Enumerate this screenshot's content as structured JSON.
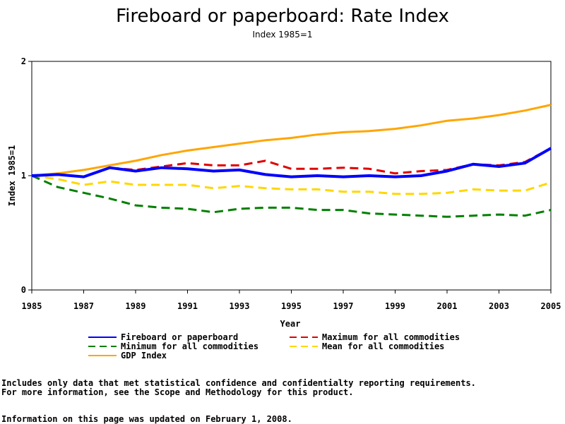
{
  "chart_data": {
    "type": "line",
    "title": "Fireboard or paperboard: Rate Index",
    "subtitle": "Index 1985=1",
    "xlabel": "Year",
    "ylabel": "Index 1985=1",
    "xlim": [
      1985,
      2005
    ],
    "ylim": [
      0,
      2
    ],
    "x_ticks": [
      "1985",
      "1987",
      "1989",
      "1991",
      "1993",
      "1995",
      "1997",
      "1999",
      "2001",
      "2003",
      "2005"
    ],
    "y_ticks": [
      "0",
      "1",
      "2"
    ],
    "x": [
      1985,
      1986,
      1987,
      1988,
      1989,
      1990,
      1991,
      1992,
      1993,
      1994,
      1995,
      1996,
      1997,
      1998,
      1999,
      2000,
      2001,
      2002,
      2003,
      2004,
      2005
    ],
    "series": [
      {
        "name": "Fireboard or paperboard",
        "color": "#0000ff",
        "dash": "solid",
        "values": [
          1.0,
          1.01,
          0.99,
          1.07,
          1.04,
          1.07,
          1.06,
          1.04,
          1.05,
          1.01,
          0.99,
          1.0,
          0.99,
          1.0,
          0.99,
          1.0,
          1.04,
          1.1,
          1.08,
          1.11,
          1.24
        ]
      },
      {
        "name": "Maximum for all commodities",
        "color": "#e00000",
        "dash": "dashed",
        "values": [
          1.0,
          1.01,
          0.99,
          1.07,
          1.05,
          1.08,
          1.11,
          1.09,
          1.09,
          1.13,
          1.06,
          1.06,
          1.07,
          1.06,
          1.02,
          1.04,
          1.05,
          1.1,
          1.09,
          1.12,
          1.24
        ]
      },
      {
        "name": "Minimum for all commodities",
        "color": "#008000",
        "dash": "dashed",
        "values": [
          1.0,
          0.9,
          0.85,
          0.8,
          0.74,
          0.72,
          0.71,
          0.68,
          0.71,
          0.72,
          0.72,
          0.7,
          0.7,
          0.67,
          0.66,
          0.65,
          0.64,
          0.65,
          0.66,
          0.65,
          0.7
        ]
      },
      {
        "name": "Mean for all commodities",
        "color": "#ffd700",
        "dash": "dashed",
        "values": [
          1.0,
          0.97,
          0.92,
          0.95,
          0.92,
          0.92,
          0.92,
          0.89,
          0.91,
          0.89,
          0.88,
          0.88,
          0.86,
          0.86,
          0.84,
          0.84,
          0.85,
          0.88,
          0.87,
          0.87,
          0.94
        ]
      },
      {
        "name": "GDP Index",
        "color": "#ffa500",
        "dash": "solid",
        "values": [
          1.0,
          1.02,
          1.05,
          1.09,
          1.13,
          1.18,
          1.22,
          1.25,
          1.28,
          1.31,
          1.33,
          1.36,
          1.38,
          1.39,
          1.41,
          1.44,
          1.48,
          1.5,
          1.53,
          1.57,
          1.62
        ]
      }
    ],
    "legend_placement": "bottom"
  },
  "notes": {
    "line1": "Includes only data that met statistical confidence and confidentialty reporting requirements.",
    "line2": "For more information, see the Scope and Methodology for this product.",
    "updated": "Information on this page was updated on February 1, 2008."
  }
}
